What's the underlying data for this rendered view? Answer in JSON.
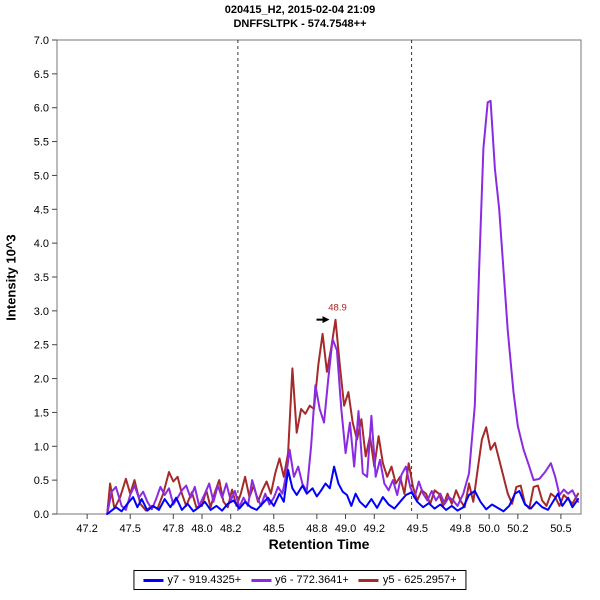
{
  "title": {
    "line1": "020415_H2, 2015-02-04 21:09",
    "line2": "DNFFSLTPK - 574.7548++"
  },
  "chart_data": {
    "type": "line",
    "title": "020415_H2, 2015-02-04 21:09 / DNFFSLTPK - 574.7548++",
    "xlabel": "Retention Time",
    "ylabel": "Intensity 10^3",
    "xlim": [
      46.99,
      50.64
    ],
    "ylim": [
      0.0,
      7.0
    ],
    "xticks": [
      "47.2",
      "47.5",
      "47.8",
      "48.0",
      "48.2",
      "48.5",
      "48.8",
      "49.0",
      "49.2",
      "49.5",
      "49.8",
      "50.0",
      "50.2",
      "50.5"
    ],
    "yticks": [
      "0.0",
      "0.5",
      "1.0",
      "1.5",
      "2.0",
      "2.5",
      "3.0",
      "3.5",
      "4.0",
      "4.5",
      "5.0",
      "5.5",
      "6.0",
      "6.5",
      "7.0"
    ],
    "grid": false,
    "legend_position": "bottom-center",
    "frame_color": "#777777",
    "boundary_color": "#333333",
    "peak_boundaries": [
      48.25,
      49.46
    ],
    "annotation": {
      "x": 48.93,
      "y": 2.87,
      "label": "48.9",
      "color": "#aa2222",
      "arrow_color": "#000000"
    },
    "series": [
      {
        "name": "y7 - 919.4325+",
        "color": "#0000ff",
        "points": [
          [
            47.34,
            0.0
          ],
          [
            47.37,
            0.05
          ],
          [
            47.4,
            0.1
          ],
          [
            47.44,
            0.04
          ],
          [
            47.48,
            0.15
          ],
          [
            47.52,
            0.25
          ],
          [
            47.55,
            0.1
          ],
          [
            47.58,
            0.22
          ],
          [
            47.62,
            0.05
          ],
          [
            47.66,
            0.12
          ],
          [
            47.7,
            0.06
          ],
          [
            47.74,
            0.22
          ],
          [
            47.78,
            0.1
          ],
          [
            47.82,
            0.24
          ],
          [
            47.86,
            0.06
          ],
          [
            47.9,
            0.15
          ],
          [
            47.94,
            0.04
          ],
          [
            47.98,
            0.1
          ],
          [
            48.02,
            0.18
          ],
          [
            48.06,
            0.06
          ],
          [
            48.1,
            0.12
          ],
          [
            48.14,
            0.05
          ],
          [
            48.18,
            0.15
          ],
          [
            48.22,
            0.2
          ],
          [
            48.26,
            0.08
          ],
          [
            48.3,
            0.18
          ],
          [
            48.34,
            0.1
          ],
          [
            48.38,
            0.06
          ],
          [
            48.42,
            0.15
          ],
          [
            48.46,
            0.24
          ],
          [
            48.5,
            0.12
          ],
          [
            48.54,
            0.3
          ],
          [
            48.57,
            0.18
          ],
          [
            48.6,
            0.65
          ],
          [
            48.63,
            0.38
          ],
          [
            48.66,
            0.28
          ],
          [
            48.7,
            0.42
          ],
          [
            48.73,
            0.3
          ],
          [
            48.77,
            0.38
          ],
          [
            48.8,
            0.26
          ],
          [
            48.83,
            0.35
          ],
          [
            48.86,
            0.45
          ],
          [
            48.89,
            0.38
          ],
          [
            48.92,
            0.7
          ],
          [
            48.95,
            0.45
          ],
          [
            48.98,
            0.33
          ],
          [
            49.01,
            0.28
          ],
          [
            49.04,
            0.12
          ],
          [
            49.07,
            0.3
          ],
          [
            49.1,
            0.18
          ],
          [
            49.14,
            0.1
          ],
          [
            49.18,
            0.22
          ],
          [
            49.22,
            0.09
          ],
          [
            49.26,
            0.25
          ],
          [
            49.3,
            0.14
          ],
          [
            49.34,
            0.08
          ],
          [
            49.38,
            0.18
          ],
          [
            49.42,
            0.28
          ],
          [
            49.46,
            0.32
          ],
          [
            49.5,
            0.18
          ],
          [
            49.54,
            0.1
          ],
          [
            49.58,
            0.16
          ],
          [
            49.62,
            0.08
          ],
          [
            49.66,
            0.14
          ],
          [
            49.7,
            0.06
          ],
          [
            49.74,
            0.12
          ],
          [
            49.78,
            0.05
          ],
          [
            49.82,
            0.1
          ],
          [
            49.86,
            0.28
          ],
          [
            49.9,
            0.34
          ],
          [
            49.94,
            0.18
          ],
          [
            49.98,
            0.07
          ],
          [
            50.02,
            0.14
          ],
          [
            50.06,
            0.09
          ],
          [
            50.1,
            0.04
          ],
          [
            50.14,
            0.12
          ],
          [
            50.18,
            0.3
          ],
          [
            50.21,
            0.34
          ],
          [
            50.25,
            0.14
          ],
          [
            50.29,
            0.08
          ],
          [
            50.33,
            0.18
          ],
          [
            50.37,
            0.1
          ],
          [
            50.41,
            0.06
          ],
          [
            50.45,
            0.2
          ],
          [
            50.48,
            0.3
          ],
          [
            50.51,
            0.12
          ],
          [
            50.55,
            0.24
          ],
          [
            50.58,
            0.1
          ],
          [
            50.62,
            0.22
          ]
        ]
      },
      {
        "name": "y6 - 772.3641+",
        "color": "#8a2be2",
        "points": [
          [
            47.34,
            0.0
          ],
          [
            47.37,
            0.33
          ],
          [
            47.4,
            0.4
          ],
          [
            47.44,
            0.12
          ],
          [
            47.47,
            0.06
          ],
          [
            47.5,
            0.28
          ],
          [
            47.53,
            0.42
          ],
          [
            47.56,
            0.24
          ],
          [
            47.59,
            0.33
          ],
          [
            47.62,
            0.18
          ],
          [
            47.65,
            0.07
          ],
          [
            47.68,
            0.22
          ],
          [
            47.71,
            0.4
          ],
          [
            47.74,
            0.28
          ],
          [
            47.77,
            0.38
          ],
          [
            47.8,
            0.14
          ],
          [
            47.83,
            0.24
          ],
          [
            47.86,
            0.35
          ],
          [
            47.89,
            0.42
          ],
          [
            47.92,
            0.24
          ],
          [
            47.95,
            0.4
          ],
          [
            47.98,
            0.12
          ],
          [
            48.02,
            0.3
          ],
          [
            48.05,
            0.45
          ],
          [
            48.08,
            0.18
          ],
          [
            48.11,
            0.42
          ],
          [
            48.14,
            0.24
          ],
          [
            48.17,
            0.45
          ],
          [
            48.2,
            0.2
          ],
          [
            48.23,
            0.34
          ],
          [
            48.26,
            0.1
          ],
          [
            48.29,
            0.24
          ],
          [
            48.32,
            0.12
          ],
          [
            48.35,
            0.5
          ],
          [
            48.38,
            0.27
          ],
          [
            48.41,
            0.12
          ],
          [
            48.44,
            0.3
          ],
          [
            48.47,
            0.14
          ],
          [
            48.5,
            0.24
          ],
          [
            48.53,
            0.4
          ],
          [
            48.56,
            0.3
          ],
          [
            48.59,
            0.62
          ],
          [
            48.61,
            0.95
          ],
          [
            48.64,
            0.55
          ],
          [
            48.67,
            0.7
          ],
          [
            48.7,
            0.44
          ],
          [
            48.73,
            0.34
          ],
          [
            48.76,
            1.0
          ],
          [
            48.79,
            1.9
          ],
          [
            48.82,
            1.55
          ],
          [
            48.85,
            1.35
          ],
          [
            48.88,
            2.0
          ],
          [
            48.91,
            2.58
          ],
          [
            48.94,
            2.42
          ],
          [
            48.97,
            1.55
          ],
          [
            49.0,
            0.9
          ],
          [
            49.03,
            1.35
          ],
          [
            49.06,
            0.7
          ],
          [
            49.09,
            1.52
          ],
          [
            49.12,
            0.6
          ],
          [
            49.15,
            0.55
          ],
          [
            49.18,
            1.45
          ],
          [
            49.21,
            0.55
          ],
          [
            49.24,
            0.8
          ],
          [
            49.27,
            0.45
          ],
          [
            49.3,
            0.35
          ],
          [
            49.33,
            0.5
          ],
          [
            49.36,
            0.28
          ],
          [
            49.39,
            0.58
          ],
          [
            49.42,
            0.7
          ],
          [
            49.45,
            0.4
          ],
          [
            49.48,
            0.24
          ],
          [
            49.51,
            0.48
          ],
          [
            49.54,
            0.3
          ],
          [
            49.57,
            0.2
          ],
          [
            49.6,
            0.34
          ],
          [
            49.63,
            0.2
          ],
          [
            49.66,
            0.3
          ],
          [
            49.69,
            0.15
          ],
          [
            49.72,
            0.25
          ],
          [
            49.75,
            0.2
          ],
          [
            49.78,
            0.12
          ],
          [
            49.82,
            0.3
          ],
          [
            49.86,
            0.6
          ],
          [
            49.9,
            1.6
          ],
          [
            49.93,
            3.6
          ],
          [
            49.96,
            5.4
          ],
          [
            49.99,
            6.08
          ],
          [
            50.01,
            6.1
          ],
          [
            50.04,
            5.1
          ],
          [
            50.07,
            4.5
          ],
          [
            50.1,
            3.6
          ],
          [
            50.13,
            2.7
          ],
          [
            50.17,
            1.8
          ],
          [
            50.2,
            1.3
          ],
          [
            50.24,
            0.95
          ],
          [
            50.28,
            0.7
          ],
          [
            50.31,
            0.5
          ],
          [
            50.35,
            0.52
          ],
          [
            50.39,
            0.62
          ],
          [
            50.43,
            0.75
          ],
          [
            50.46,
            0.55
          ],
          [
            50.49,
            0.28
          ],
          [
            50.52,
            0.36
          ],
          [
            50.55,
            0.3
          ],
          [
            50.58,
            0.35
          ],
          [
            50.62,
            0.18
          ]
        ]
      },
      {
        "name": "y5 - 625.2957+",
        "color": "#a52a2a",
        "points": [
          [
            47.34,
            0.0
          ],
          [
            47.36,
            0.45
          ],
          [
            47.39,
            0.08
          ],
          [
            47.43,
            0.25
          ],
          [
            47.47,
            0.52
          ],
          [
            47.5,
            0.3
          ],
          [
            47.53,
            0.5
          ],
          [
            47.57,
            0.15
          ],
          [
            47.61,
            0.05
          ],
          [
            47.65,
            0.12
          ],
          [
            47.69,
            0.08
          ],
          [
            47.73,
            0.3
          ],
          [
            47.77,
            0.62
          ],
          [
            47.8,
            0.48
          ],
          [
            47.83,
            0.55
          ],
          [
            47.86,
            0.3
          ],
          [
            47.89,
            0.12
          ],
          [
            47.93,
            0.32
          ],
          [
            47.96,
            0.1
          ],
          [
            48.0,
            0.12
          ],
          [
            48.03,
            0.35
          ],
          [
            48.06,
            0.1
          ],
          [
            48.09,
            0.32
          ],
          [
            48.12,
            0.5
          ],
          [
            48.15,
            0.18
          ],
          [
            48.18,
            0.1
          ],
          [
            48.21,
            0.36
          ],
          [
            48.24,
            0.12
          ],
          [
            48.27,
            0.3
          ],
          [
            48.3,
            0.55
          ],
          [
            48.33,
            0.25
          ],
          [
            48.36,
            0.42
          ],
          [
            48.39,
            0.18
          ],
          [
            48.42,
            0.35
          ],
          [
            48.45,
            0.48
          ],
          [
            48.48,
            0.3
          ],
          [
            48.51,
            0.6
          ],
          [
            48.54,
            0.82
          ],
          [
            48.57,
            0.55
          ],
          [
            48.6,
            0.9
          ],
          [
            48.63,
            2.15
          ],
          [
            48.66,
            1.2
          ],
          [
            48.69,
            1.55
          ],
          [
            48.72,
            1.48
          ],
          [
            48.75,
            1.6
          ],
          [
            48.78,
            1.55
          ],
          [
            48.81,
            2.2
          ],
          [
            48.84,
            2.66
          ],
          [
            48.87,
            2.1
          ],
          [
            48.9,
            2.45
          ],
          [
            48.93,
            2.87
          ],
          [
            48.96,
            2.2
          ],
          [
            48.99,
            1.6
          ],
          [
            49.02,
            1.8
          ],
          [
            49.05,
            1.35
          ],
          [
            49.08,
            1.1
          ],
          [
            49.11,
            1.4
          ],
          [
            49.14,
            0.85
          ],
          [
            49.17,
            1.15
          ],
          [
            49.2,
            0.7
          ],
          [
            49.23,
            1.15
          ],
          [
            49.26,
            0.75
          ],
          [
            49.29,
            0.55
          ],
          [
            49.32,
            0.7
          ],
          [
            49.35,
            0.45
          ],
          [
            49.38,
            0.55
          ],
          [
            49.41,
            0.3
          ],
          [
            49.44,
            0.75
          ],
          [
            49.47,
            0.4
          ],
          [
            49.5,
            0.2
          ],
          [
            49.53,
            0.35
          ],
          [
            49.56,
            0.3
          ],
          [
            49.59,
            0.15
          ],
          [
            49.62,
            0.35
          ],
          [
            49.65,
            0.3
          ],
          [
            49.68,
            0.12
          ],
          [
            49.71,
            0.3
          ],
          [
            49.74,
            0.15
          ],
          [
            49.77,
            0.35
          ],
          [
            49.8,
            0.2
          ],
          [
            49.83,
            0.1
          ],
          [
            49.86,
            0.45
          ],
          [
            49.89,
            0.18
          ],
          [
            49.92,
            0.65
          ],
          [
            49.95,
            1.1
          ],
          [
            49.98,
            1.28
          ],
          [
            50.01,
            0.95
          ],
          [
            50.04,
            1.05
          ],
          [
            50.07,
            0.8
          ],
          [
            50.1,
            0.55
          ],
          [
            50.13,
            0.3
          ],
          [
            50.16,
            0.15
          ],
          [
            50.19,
            0.4
          ],
          [
            50.22,
            0.42
          ],
          [
            50.25,
            0.15
          ],
          [
            50.28,
            0.08
          ],
          [
            50.31,
            0.4
          ],
          [
            50.34,
            0.42
          ],
          [
            50.37,
            0.2
          ],
          [
            50.4,
            0.12
          ],
          [
            50.43,
            0.3
          ],
          [
            50.46,
            0.25
          ],
          [
            50.49,
            0.12
          ],
          [
            50.52,
            0.28
          ],
          [
            50.55,
            0.22
          ],
          [
            50.58,
            0.15
          ],
          [
            50.62,
            0.3
          ]
        ]
      }
    ]
  }
}
